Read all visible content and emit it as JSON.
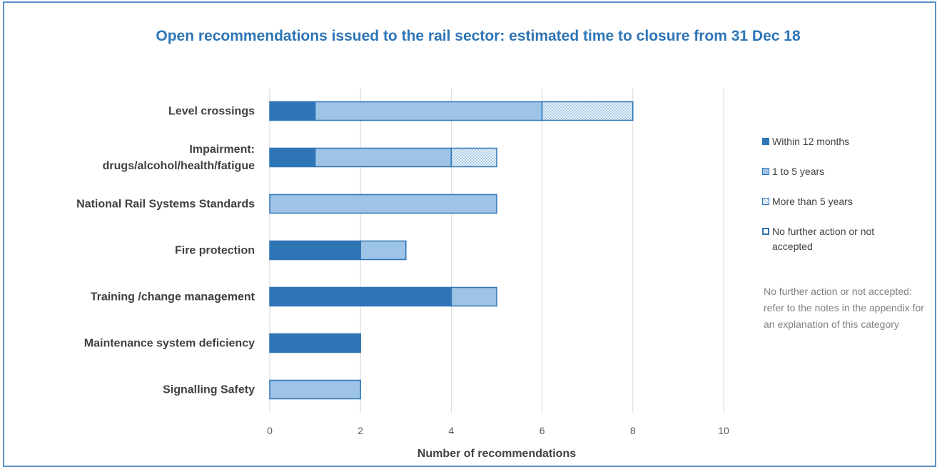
{
  "colors": {
    "within_12_months": "#2e75b6",
    "one_to_five_years": "#9dc3e6",
    "more_than_5_years_pattern": "#9dc3e6",
    "bar_outline": "#2e75b6",
    "gridline": "#d9d9d9",
    "title": "#2e75b6"
  },
  "chart_data": {
    "type": "bar",
    "orientation": "horizontal",
    "stacked": true,
    "title": "Open recommendations issued to the rail sector: estimated time to closure from 31 Dec 18",
    "xlabel": "Number of recommendations",
    "ylabel": "",
    "xlim": [
      0,
      10
    ],
    "xticks": [
      "0",
      "2",
      "4",
      "6",
      "8",
      "10"
    ],
    "grid": true,
    "legend_position": "right",
    "categories": [
      "Level crossings",
      "Impairment: drugs/alcohol/health/fatigue",
      "National Rail Systems Standards",
      "Fire protection",
      "Training /change management",
      "Maintenance system deficiency",
      "Signalling Safety"
    ],
    "series": [
      {
        "name": "Within 12 months",
        "values": [
          1,
          1,
          0,
          2,
          4,
          2,
          0
        ]
      },
      {
        "name": "1 to 5 years",
        "values": [
          5,
          3,
          5,
          1,
          1,
          0,
          2
        ]
      },
      {
        "name": "More than  5 years",
        "values": [
          2,
          1,
          0,
          0,
          0,
          0,
          0
        ]
      },
      {
        "name": "No further action or not accepted",
        "values": [
          0,
          0,
          0,
          0,
          0,
          0,
          0
        ]
      }
    ]
  },
  "category_label_lines": [
    [
      "Level crossings"
    ],
    [
      "Impairment:",
      "drugs/alcohol/health/fatigue"
    ],
    [
      "National Rail Systems Standards"
    ],
    [
      "Fire protection"
    ],
    [
      "Training /change management"
    ],
    [
      "Maintenance system deficiency"
    ],
    [
      "Signalling Safety"
    ]
  ],
  "legend": {
    "items": [
      {
        "lines": [
          "Within 12 months"
        ]
      },
      {
        "lines": [
          "1 to 5 years"
        ]
      },
      {
        "lines": [
          "More than  5 years"
        ]
      },
      {
        "lines": [
          "No further action or not",
          "accepted"
        ]
      }
    ]
  },
  "note": "No further action or not accepted: refer to the notes in the appendix  for an explanation of this category"
}
